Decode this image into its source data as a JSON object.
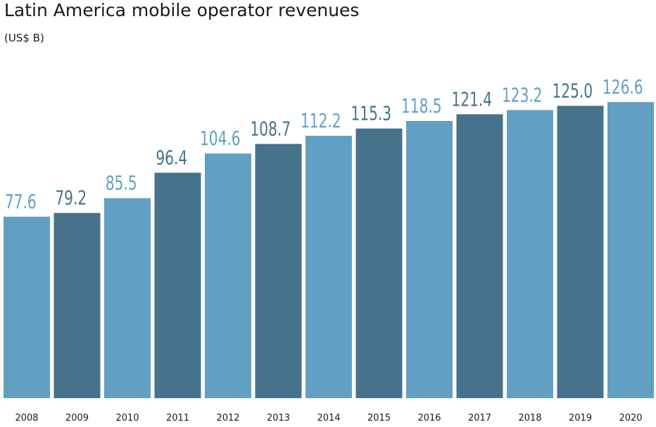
{
  "chart_data": {
    "type": "bar",
    "title": "Latin America mobile operator revenues",
    "subtitle": "(US$ B)",
    "categories": [
      "2008",
      "2009",
      "2010",
      "2011",
      "2012",
      "2013",
      "2014",
      "2015",
      "2016",
      "2017",
      "2018",
      "2019",
      "2020"
    ],
    "values": [
      77.6,
      79.2,
      85.5,
      96.4,
      104.6,
      108.7,
      112.2,
      115.3,
      118.5,
      121.4,
      123.2,
      125.0,
      126.6
    ],
    "value_labels": [
      "77.6",
      "79.2",
      "85.5",
      "96.4",
      "104.6",
      "108.7",
      "112.2",
      "115.3",
      "118.5",
      "121.4",
      "123.2",
      "125.0",
      "126.6"
    ],
    "bar_colors": [
      "#62a0c3",
      "#46738b",
      "#62a0c3",
      "#46738b",
      "#62a0c3",
      "#46738b",
      "#62a0c3",
      "#46738b",
      "#62a0c3",
      "#46738b",
      "#62a0c3",
      "#46738b",
      "#62a0c3"
    ],
    "xlabel": "",
    "ylabel": "",
    "ylim": [
      0,
      130
    ],
    "grid": false,
    "legend": "none"
  }
}
